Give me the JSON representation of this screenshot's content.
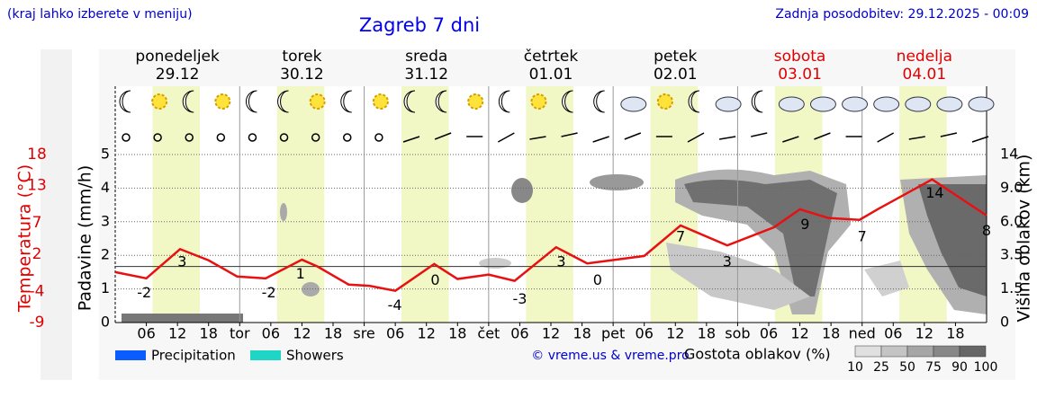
{
  "header": {
    "hint": "(kraj lahko izberete v meniju)",
    "title": "Zagreb 7 dni",
    "updated": "Zadnja posodobitev: 29.12.2025 - 00:09",
    "credit": "© vreme.us & vreme.pro"
  },
  "chart_data": {
    "type": "meteogram",
    "days": [
      {
        "name": "ponedeljek",
        "date": "29.12",
        "color": "#000000"
      },
      {
        "name": "torek",
        "date": "30.12",
        "color": "#000000"
      },
      {
        "name": "sreda",
        "date": "31.12",
        "color": "#000000"
      },
      {
        "name": "četrtek",
        "date": "01.01",
        "color": "#000000"
      },
      {
        "name": "petek",
        "date": "02.01",
        "color": "#000000"
      },
      {
        "name": "sobota",
        "date": "03.01",
        "color": "#e00000"
      },
      {
        "name": "nedelja",
        "date": "04.01",
        "color": "#e00000"
      }
    ],
    "xlim": [
      0,
      168
    ],
    "xticks": [
      {
        "value": 6,
        "label": "06"
      },
      12,
      18,
      {
        "value": 24,
        "label": "tor"
      },
      {
        "value": 30,
        "label": "06"
      },
      {
        "value": 36,
        "label": "12"
      },
      {
        "value": 42,
        "label": "18"
      },
      {
        "value": 48,
        "label": "sre"
      },
      {
        "value": 54,
        "label": "06"
      },
      {
        "value": 60,
        "label": "12"
      },
      {
        "value": 66,
        "label": "18"
      },
      {
        "value": 72,
        "label": "čet"
      },
      {
        "value": 78,
        "label": "06"
      },
      {
        "value": 84,
        "label": "12"
      },
      {
        "value": 90,
        "label": "18"
      },
      {
        "value": 96,
        "label": "pet"
      },
      {
        "value": 102,
        "label": "06"
      },
      {
        "value": 108,
        "label": "12"
      },
      {
        "value": 114,
        "label": "18"
      },
      {
        "value": 120,
        "label": "sob"
      },
      {
        "value": 126,
        "label": "06"
      },
      {
        "value": 132,
        "label": "12"
      },
      {
        "value": 138,
        "label": "18"
      },
      {
        "value": 144,
        "label": "ned"
      },
      {
        "value": 150,
        "label": "06"
      },
      {
        "value": 156,
        "label": "12"
      },
      {
        "value": 162,
        "label": "18"
      }
    ],
    "ylabel": "Padavine (mm/h)",
    "ylim": [
      0,
      5
    ],
    "yticks": [
      0,
      1,
      2,
      3,
      4,
      5
    ],
    "y2label": "Temperatura (°C)",
    "y2lim": [
      -9,
      18
    ],
    "y2ticks": [
      18,
      13,
      7,
      2,
      -4,
      -9
    ],
    "y3label": "Višina oblakov (km)",
    "y3ticks": [
      0,
      1.5,
      3.5,
      {
        "value": 6,
        "label": "6.0"
      },
      {
        "value": 9,
        "label": "9.0"
      },
      14
    ],
    "temperature": {
      "color": "#e81010",
      "x": [
        0,
        6,
        12.5,
        18,
        23.5,
        29,
        36,
        39,
        45,
        49,
        54,
        61.5,
        66,
        72,
        77,
        85,
        91,
        102,
        109,
        118,
        127,
        132,
        137.5,
        143.5,
        147,
        157.5,
        168
      ],
      "values": [
        -0.9,
        -1.9,
        2.8,
        1,
        -1.6,
        -1.9,
        1.1,
        0,
        -2.9,
        -3.1,
        -3.9,
        0.4,
        -2,
        -1.3,
        -2.3,
        3.1,
        0.5,
        1.7,
        6.6,
        3.4,
        6.3,
        9.2,
        7.8,
        7.5,
        9.2,
        14,
        8.2
      ],
      "labels_x": [
        5.6,
        12.9,
        29.6,
        35.7,
        53.9,
        61.7,
        78,
        86,
        93,
        109,
        118,
        133,
        144,
        158,
        168
      ],
      "labels": [
        -2,
        3,
        -2,
        1,
        -4,
        0,
        -3,
        3,
        0,
        7,
        3,
        9,
        7,
        14,
        8
      ]
    },
    "series": [
      {
        "name": "Precipitation",
        "color": "#0a5cff"
      },
      {
        "name": "Showers",
        "color": "#1fd6c6"
      }
    ],
    "cloud_density": {
      "label": "Gostota oblakov (%)",
      "ticks": [
        10,
        25,
        50,
        75,
        90,
        100
      ]
    }
  }
}
